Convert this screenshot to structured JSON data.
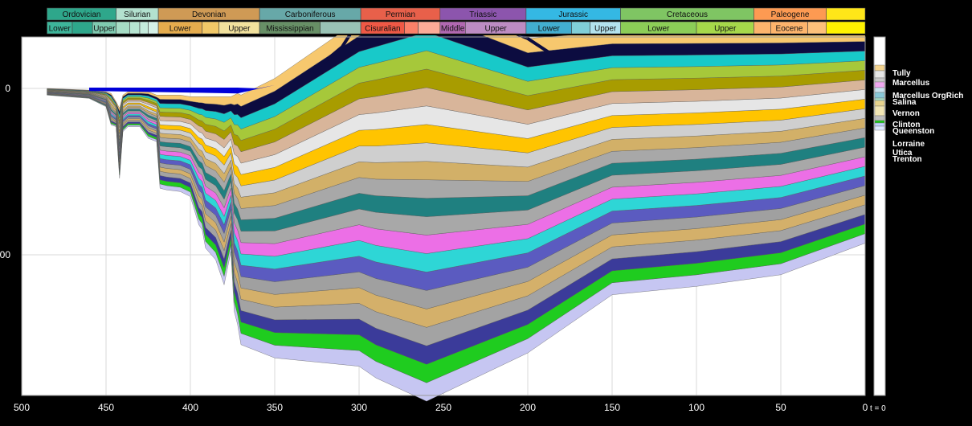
{
  "chart_data": {
    "type": "area",
    "title": "",
    "xlabel": "",
    "ylabel": "",
    "x_direction": "reversed",
    "xlim": [
      500,
      0
    ],
    "x_ticks": [
      "500",
      "450",
      "400",
      "350",
      "300",
      "250",
      "200",
      "150",
      "100",
      "50",
      "0"
    ],
    "y_ticks": [
      "0",
      "00"
    ],
    "present_label": "t = 0",
    "periods": [
      {
        "name": "Ordovician",
        "start": 485,
        "end": 444,
        "color": "#2ea78b"
      },
      {
        "name": "Silurian",
        "start": 444,
        "end": 419,
        "color": "#b3e1cf"
      },
      {
        "name": "Devonian",
        "start": 419,
        "end": 359,
        "color": "#cf9a55"
      },
      {
        "name": "Carboniferous",
        "start": 359,
        "end": 299,
        "color": "#67a8a8"
      },
      {
        "name": "Permian",
        "start": 299,
        "end": 252,
        "color": "#e8604a"
      },
      {
        "name": "Triassic",
        "start": 252,
        "end": 201,
        "color": "#8c55ad"
      },
      {
        "name": "Jurassic",
        "start": 201,
        "end": 145,
        "color": "#34b8e4"
      },
      {
        "name": "Cretaceous",
        "start": 145,
        "end": 66,
        "color": "#7fc563"
      },
      {
        "name": "Paleogene",
        "start": 66,
        "end": 23,
        "color": "#fd9a52"
      },
      {
        "name": "",
        "start": 23,
        "end": 0,
        "color": "#ffe619"
      }
    ],
    "epochs": [
      {
        "name": "Lower",
        "start": 485,
        "end": 470,
        "color": "#3db59a"
      },
      {
        "name": "",
        "start": 470,
        "end": 458,
        "color": "#2ea78b"
      },
      {
        "name": "Upper",
        "start": 458,
        "end": 444,
        "color": "#7fcab0"
      },
      {
        "name": "",
        "start": 444,
        "end": 436,
        "color": "#a6dcc5"
      },
      {
        "name": "",
        "start": 436,
        "end": 430,
        "color": "#b6e4d1"
      },
      {
        "name": "",
        "start": 430,
        "end": 425,
        "color": "#c5ebdc"
      },
      {
        "name": "",
        "start": 425,
        "end": 419,
        "color": "#d5f1e7"
      },
      {
        "name": "Lower",
        "start": 419,
        "end": 393,
        "color": "#e5ac4d"
      },
      {
        "name": "",
        "start": 393,
        "end": 383,
        "color": "#f1c868"
      },
      {
        "name": "Upper",
        "start": 383,
        "end": 359,
        "color": "#f1e19d"
      },
      {
        "name": "Mississippian",
        "start": 359,
        "end": 323,
        "color": "#678f66"
      },
      {
        "name": "",
        "start": 323,
        "end": 299,
        "color": "#99c2b5"
      },
      {
        "name": "Cisuralian",
        "start": 299,
        "end": 273,
        "color": "#ef5845"
      },
      {
        "name": "",
        "start": 273,
        "end": 265,
        "color": "#fb8069"
      },
      {
        "name": "",
        "start": 265,
        "end": 252,
        "color": "#fbab98"
      },
      {
        "name": "Middle",
        "start": 252,
        "end": 237,
        "color": "#b168b1"
      },
      {
        "name": "Upper",
        "start": 237,
        "end": 201,
        "color": "#bd8cc3"
      },
      {
        "name": "Lower",
        "start": 201,
        "end": 174,
        "color": "#42aed0"
      },
      {
        "name": "",
        "start": 174,
        "end": 163,
        "color": "#80cfd8"
      },
      {
        "name": "Upper",
        "start": 163,
        "end": 145,
        "color": "#b3e3ee"
      },
      {
        "name": "Lower",
        "start": 145,
        "end": 100,
        "color": "#8ccd57"
      },
      {
        "name": "Upper",
        "start": 100,
        "end": 66,
        "color": "#a6d84a"
      },
      {
        "name": "",
        "start": 66,
        "end": 56,
        "color": "#fdb46c"
      },
      {
        "name": "Eocene",
        "start": 56,
        "end": 34,
        "color": "#fdb46c"
      },
      {
        "name": "",
        "start": 34,
        "end": 23,
        "color": "#fdc07a"
      },
      {
        "name": "",
        "start": 23,
        "end": 0,
        "color": "#fff200"
      }
    ],
    "layer_colors": [
      "#c6c6f2",
      "#1fcc1f",
      "#3b3b9a",
      "#a3a3a3",
      "#d4b06a",
      "#a0a0a0",
      "#5b5bc0",
      "#2ed6d6",
      "#ec6fe6",
      "#a8a8a8",
      "#1f8080",
      "#a8a8a8",
      "#d2b068",
      "#cfcfcf",
      "#ffc400",
      "#e6e6e6",
      "#d8b59a",
      "#a89c00",
      "#a6c83a",
      "#18c9c9",
      "#0c0c40",
      "#f7c86e"
    ],
    "burial_envelope": {
      "x": [
        485,
        460,
        450,
        447,
        444,
        442,
        440,
        437,
        430,
        425,
        420,
        418,
        414,
        406,
        400,
        395,
        393,
        391,
        385,
        380,
        376,
        374,
        372,
        370,
        350,
        300,
        290,
        260,
        200,
        150,
        100,
        50,
        0
      ],
      "top_depth": [
        0,
        1,
        2,
        3,
        8,
        12,
        4,
        2,
        2,
        2,
        4,
        4,
        4,
        4,
        5,
        5,
        5,
        5,
        5,
        5,
        5,
        4,
        3,
        4,
        -6,
        -41,
        -45,
        -56,
        -30,
        -34,
        -34,
        -34,
        -34
      ],
      "base_depth": [
        4,
        6,
        11,
        22,
        23,
        54,
        26,
        23,
        23,
        30,
        32,
        60,
        61,
        62,
        65,
        82,
        85,
        96,
        103,
        118,
        98,
        134,
        142,
        154,
        162,
        167,
        174,
        188,
        159,
        124,
        119,
        112,
        93
      ]
    },
    "erosion_wedge": {
      "x": [
        330,
        310,
        300,
        260,
        200,
        185
      ],
      "depth": [
        -8,
        -25,
        -41,
        -55,
        -30,
        -20
      ]
    },
    "strat_column": [
      {
        "name": "Tully",
        "pattern": "limestone"
      },
      {
        "name": "Marcellus",
        "pattern": "shale"
      },
      {
        "name": "Marcellus OrgRich",
        "pattern": "organic-shale"
      },
      {
        "name": "Salina",
        "pattern": "evaporite"
      },
      {
        "name": "Vernon",
        "pattern": "shale"
      },
      {
        "name": "Clinton",
        "pattern": "sandstone"
      },
      {
        "name": "Queenston",
        "pattern": "sandstone"
      },
      {
        "name": "Lorraine",
        "pattern": "shale"
      },
      {
        "name": "Utica",
        "pattern": "shale"
      },
      {
        "name": "Trenton",
        "pattern": "limestone"
      }
    ]
  }
}
